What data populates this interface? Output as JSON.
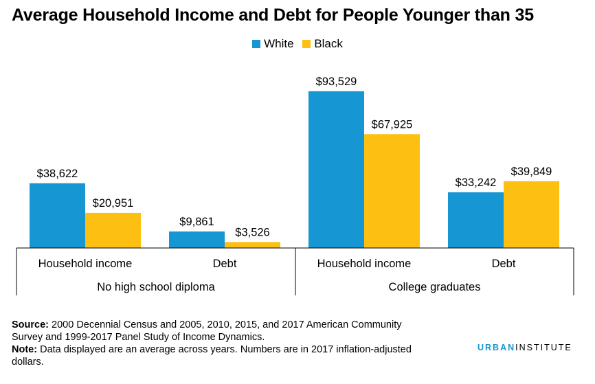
{
  "chart_data": {
    "type": "bar",
    "title": "Average Household Income and Debt for People Younger than 35",
    "groups": [
      {
        "label": "No high school diploma",
        "categories": [
          "Household income",
          "Debt"
        ]
      },
      {
        "label": "College graduates",
        "categories": [
          "Household income",
          "Debt"
        ]
      }
    ],
    "series": [
      {
        "name": "White",
        "color": "#1696d2",
        "values": [
          38622,
          9861,
          93529,
          33242
        ],
        "labels": [
          "$38,622",
          "$9,861",
          "$93,529",
          "$33,242"
        ]
      },
      {
        "name": "Black",
        "color": "#fdbf11",
        "values": [
          20951,
          3526,
          67925,
          39849
        ],
        "labels": [
          "$20,951",
          "$3,526",
          "$67,925",
          "$39,849"
        ]
      }
    ],
    "ylim": [
      0,
      100000
    ],
    "legend": "top-center",
    "grid": false
  },
  "footer": {
    "source_label": "Source:",
    "source_text": " 2000 Decennial Census and 2005, 2010, 2015, and 2017 American Community Survey and 1999-2017 Panel Study of Income Dynamics.",
    "note_label": "Note:",
    "note_text": " Data displayed are an average across years. Numbers are in 2017 inflation-adjusted dollars."
  },
  "logo": {
    "part1": "URBAN",
    "part2": "INSTITUTE"
  }
}
